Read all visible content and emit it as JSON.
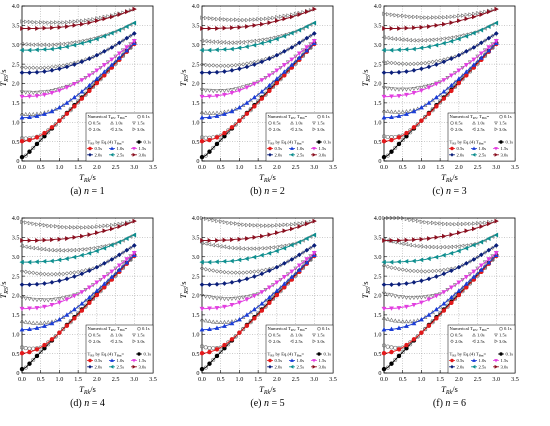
{
  "figure": {
    "panels": [
      {
        "caption_letter": "(a)",
        "caption_eq": "n = 1",
        "n": 1
      },
      {
        "caption_letter": "(b)",
        "caption_eq": "n = 2",
        "n": 2
      },
      {
        "caption_letter": "(c)",
        "caption_eq": "n = 3",
        "n": 3
      },
      {
        "caption_letter": "(d)",
        "caption_eq": "n = 4",
        "n": 4
      },
      {
        "caption_letter": "(e)",
        "caption_eq": "n = 5",
        "n": 5
      },
      {
        "caption_letter": "(f)",
        "caption_eq": "n = 6",
        "n": 6
      }
    ],
    "axis": {
      "xlabel_main": "T",
      "xlabel_sub": "Rk",
      "xlabel_unit": "/s",
      "ylabel_main": "T",
      "ylabel_sub": "RS",
      "ylabel_unit": "/s",
      "xlim": [
        0,
        3.5
      ],
      "ylim": [
        0,
        4.0
      ],
      "xticks": [
        "0.0",
        "0.5",
        "1.0",
        "1.5",
        "2.0",
        "2.5",
        "3.0",
        "3.5"
      ],
      "yticks": [
        "0",
        "0.5",
        "1.0",
        "1.5",
        "2.0",
        "2.5",
        "3.0",
        "3.5",
        "4.0"
      ]
    },
    "legend": {
      "numerical_header": "Numerical T",
      "numerical_header_sub": "RS",
      "numerical_header_tail": ", T",
      "numerical_header_sub2": "Bm",
      "numerical_header_end": "=",
      "numerical_values": [
        "0.1s",
        "0.5s",
        "1.0s",
        "1.5s",
        "2.0s",
        "2.5s",
        "3.0s"
      ],
      "eq_header": "T",
      "eq_header_sub": "RS",
      "eq_header_tail": " by Eq.(4) T",
      "eq_header_sub2": "Bm",
      "eq_header_end": "=",
      "eq_values": [
        "0.1s",
        "0.5s",
        "1.0s",
        "1.5s",
        "2.0s",
        "2.5s",
        "3.0s"
      ]
    }
  },
  "chart_data": {
    "type": "line",
    "description_of_family": "Each panel shows TRS versus TRk for seven values of TBm; numerical results (hollow markers) and Eq.(4) results (lines with filled markers)",
    "xlim": [
      0,
      3.5
    ],
    "ylim": [
      0,
      4.0
    ],
    "x": [
      0.0,
      0.1,
      0.2,
      0.3,
      0.4,
      0.5,
      0.6,
      0.7,
      0.8,
      0.9,
      1.0,
      1.1,
      1.2,
      1.3,
      1.4,
      1.5,
      1.6,
      1.7,
      1.8,
      1.9,
      2.0,
      2.1,
      2.2,
      2.3,
      2.4,
      2.5,
      2.6,
      2.7,
      2.8,
      2.9,
      3.0
    ],
    "series": [
      {
        "name": "0.1s",
        "TBm": 0.1,
        "color": "#000000",
        "marker": "circle"
      },
      {
        "name": "0.5s",
        "TBm": 0.5,
        "color": "#e3191b",
        "marker": "circle"
      },
      {
        "name": "1.0s",
        "TBm": 1.0,
        "color": "#1a3cd6",
        "marker": "triangle-up"
      },
      {
        "name": "1.5s",
        "TBm": 1.5,
        "color": "#e23fe0",
        "marker": "triangle-down"
      },
      {
        "name": "2.0s",
        "TBm": 2.0,
        "color": "#0b1f7a",
        "marker": "diamond"
      },
      {
        "name": "2.5s",
        "TBm": 2.5,
        "color": "#0f8f8f",
        "marker": "triangle-left"
      },
      {
        "name": "3.0s",
        "TBm": 3.0,
        "color": "#8b1020",
        "marker": "triangle-right"
      }
    ],
    "equation_values_by_n": {
      "1": [
        [
          0.1,
          0.14,
          0.24,
          0.34,
          0.44,
          0.54,
          0.64,
          0.74,
          0.84,
          0.94,
          1.04,
          1.14,
          1.24,
          1.34,
          1.44,
          1.54,
          1.64,
          1.74,
          1.84,
          1.94,
          2.04,
          2.14,
          2.24,
          2.34,
          2.44,
          2.54,
          2.64,
          2.74,
          2.84,
          2.94,
          3.04
        ],
        [
          0.51,
          0.52,
          0.54,
          0.57,
          0.61,
          0.66,
          0.72,
          0.79,
          0.87,
          0.95,
          1.04,
          1.13,
          1.22,
          1.31,
          1.41,
          1.51,
          1.61,
          1.71,
          1.81,
          1.91,
          2.01,
          2.11,
          2.21,
          2.31,
          2.41,
          2.51,
          2.61,
          2.71,
          2.82,
          2.92,
          3.02
        ],
        [
          1.12,
          1.12,
          1.13,
          1.14,
          1.16,
          1.18,
          1.21,
          1.24,
          1.28,
          1.33,
          1.38,
          1.44,
          1.5,
          1.57,
          1.64,
          1.71,
          1.79,
          1.87,
          1.95,
          2.04,
          2.12,
          2.21,
          2.3,
          2.39,
          2.48,
          2.57,
          2.66,
          2.76,
          2.85,
          2.94,
          3.04
        ],
        [
          1.66,
          1.66,
          1.67,
          1.67,
          1.68,
          1.7,
          1.71,
          1.73,
          1.76,
          1.79,
          1.82,
          1.86,
          1.9,
          1.94,
          1.99,
          2.04,
          2.09,
          2.15,
          2.21,
          2.27,
          2.34,
          2.41,
          2.48,
          2.55,
          2.62,
          2.7,
          2.78,
          2.86,
          2.94,
          3.02,
          3.1
        ],
        [
          2.28,
          2.28,
          2.28,
          2.29,
          2.29,
          2.3,
          2.31,
          2.32,
          2.34,
          2.36,
          2.38,
          2.4,
          2.43,
          2.46,
          2.49,
          2.52,
          2.56,
          2.6,
          2.64,
          2.68,
          2.73,
          2.78,
          2.83,
          2.88,
          2.93,
          2.99,
          3.05,
          3.11,
          3.17,
          3.23,
          3.29
        ],
        [
          2.86,
          2.86,
          2.86,
          2.86,
          2.87,
          2.87,
          2.88,
          2.88,
          2.89,
          2.9,
          2.92,
          2.93,
          2.95,
          2.97,
          2.99,
          3.01,
          3.04,
          3.06,
          3.09,
          3.12,
          3.15,
          3.19,
          3.22,
          3.26,
          3.3,
          3.34,
          3.38,
          3.42,
          3.47,
          3.52,
          3.56
        ],
        [
          3.42,
          3.42,
          3.42,
          3.42,
          3.42,
          3.43,
          3.43,
          3.43,
          3.44,
          3.45,
          3.45,
          3.46,
          3.47,
          3.49,
          3.5,
          3.52,
          3.53,
          3.55,
          3.57,
          3.59,
          3.62,
          3.64,
          3.67,
          3.69,
          3.72,
          3.75,
          3.78,
          3.81,
          3.85,
          3.88,
          3.92
        ]
      ]
    }
  }
}
